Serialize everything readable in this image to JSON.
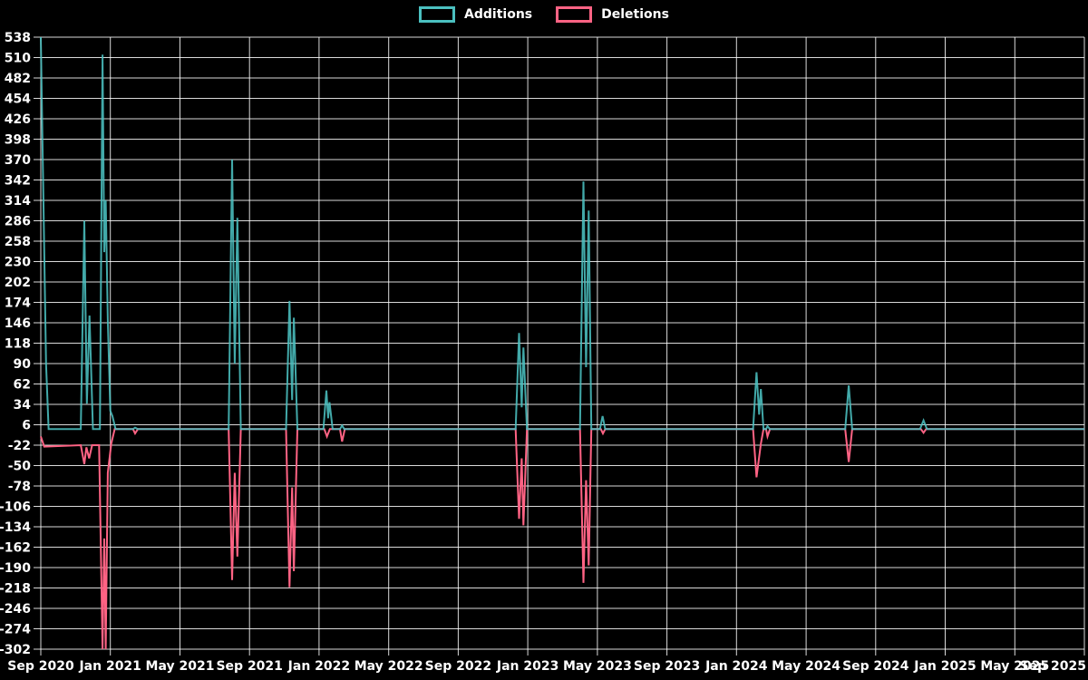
{
  "legend": {
    "items": [
      {
        "label": "Additions",
        "color": "#4bc0c0"
      },
      {
        "label": "Deletions",
        "color": "#ff6384"
      }
    ]
  },
  "chart_data": {
    "type": "line",
    "title": "",
    "legend_position": "top",
    "grid": true,
    "colors": {
      "background": "#000000",
      "grid": "rgba(255,255,255,0.85)",
      "text": "#ffffff",
      "additions": "#4bc0c0",
      "deletions": "#ff6384"
    },
    "x_axis": {
      "tick_labels": [
        "Sep 2020",
        "Jan 2021",
        "May 2021",
        "Sep 2021",
        "Jan 2022",
        "May 2022",
        "Sep 2022",
        "Jan 2023",
        "May 2023",
        "Sep 2023",
        "Jan 2024",
        "May 2024",
        "Sep 2024",
        "Jan 2025",
        "May 2025",
        "Sep 2025"
      ],
      "months_per_tick": 4,
      "range_months": [
        0,
        60
      ]
    },
    "y_axis": {
      "ticks": [
        538,
        510,
        482,
        454,
        426,
        398,
        370,
        342,
        314,
        286,
        258,
        230,
        202,
        174,
        146,
        118,
        90,
        62,
        34,
        6,
        -22,
        -50,
        -78,
        -106,
        -134,
        -162,
        -190,
        -218,
        -246,
        -274,
        -302
      ],
      "min": -302,
      "max": 538,
      "step": 28
    },
    "series": [
      {
        "name": "Additions",
        "color": "#4bc0c0",
        "points": [
          [
            0,
            538
          ],
          [
            0.3,
            90
          ],
          [
            0.45,
            0
          ],
          [
            2.3,
            0
          ],
          [
            2.5,
            286
          ],
          [
            2.65,
            35
          ],
          [
            2.8,
            156
          ],
          [
            3.0,
            0
          ],
          [
            3.4,
            0
          ],
          [
            3.55,
            514
          ],
          [
            3.65,
            243
          ],
          [
            3.73,
            314
          ],
          [
            3.85,
            150
          ],
          [
            4.0,
            25
          ],
          [
            4.12,
            18
          ],
          [
            4.3,
            0
          ],
          [
            5.3,
            0
          ],
          [
            5.42,
            2
          ],
          [
            5.58,
            0
          ],
          [
            10.8,
            0
          ],
          [
            11.0,
            370
          ],
          [
            11.15,
            90
          ],
          [
            11.3,
            290
          ],
          [
            11.5,
            0
          ],
          [
            14.1,
            0
          ],
          [
            14.3,
            176
          ],
          [
            14.45,
            40
          ],
          [
            14.55,
            153
          ],
          [
            14.75,
            0
          ],
          [
            16.25,
            0
          ],
          [
            16.42,
            53
          ],
          [
            16.52,
            15
          ],
          [
            16.6,
            37
          ],
          [
            16.78,
            0
          ],
          [
            17.2,
            0
          ],
          [
            17.32,
            5
          ],
          [
            17.45,
            0
          ],
          [
            27.3,
            0
          ],
          [
            27.5,
            132
          ],
          [
            27.65,
            30
          ],
          [
            27.75,
            112
          ],
          [
            27.95,
            0
          ],
          [
            31.0,
            0
          ],
          [
            31.2,
            340
          ],
          [
            31.35,
            85
          ],
          [
            31.5,
            300
          ],
          [
            31.65,
            0
          ],
          [
            32.15,
            0
          ],
          [
            32.3,
            18
          ],
          [
            32.45,
            0
          ],
          [
            40.95,
            0
          ],
          [
            41.15,
            78
          ],
          [
            41.3,
            20
          ],
          [
            41.4,
            55
          ],
          [
            41.55,
            0
          ],
          [
            41.7,
            0
          ],
          [
            41.78,
            4
          ],
          [
            41.92,
            0
          ],
          [
            46.25,
            0
          ],
          [
            46.45,
            60
          ],
          [
            46.65,
            0
          ],
          [
            50.55,
            0
          ],
          [
            50.75,
            12
          ],
          [
            50.95,
            0
          ],
          [
            60,
            0
          ]
        ]
      },
      {
        "name": "Deletions",
        "color": "#ff6384",
        "points": [
          [
            0,
            -10
          ],
          [
            0.2,
            -24
          ],
          [
            2.3,
            -22
          ],
          [
            2.5,
            -48
          ],
          [
            2.62,
            -25
          ],
          [
            2.78,
            -40
          ],
          [
            2.95,
            -22
          ],
          [
            3.35,
            -22
          ],
          [
            3.55,
            -302
          ],
          [
            3.65,
            -150
          ],
          [
            3.73,
            -302
          ],
          [
            3.85,
            -60
          ],
          [
            4.05,
            -20
          ],
          [
            4.25,
            0
          ],
          [
            5.3,
            0
          ],
          [
            5.42,
            -6
          ],
          [
            5.58,
            0
          ],
          [
            10.8,
            0
          ],
          [
            11.0,
            -207
          ],
          [
            11.15,
            -60
          ],
          [
            11.3,
            -175
          ],
          [
            11.5,
            0
          ],
          [
            14.1,
            0
          ],
          [
            14.3,
            -217
          ],
          [
            14.45,
            -80
          ],
          [
            14.55,
            -195
          ],
          [
            14.75,
            0
          ],
          [
            16.3,
            0
          ],
          [
            16.45,
            -10
          ],
          [
            16.62,
            0
          ],
          [
            17.2,
            0
          ],
          [
            17.32,
            -17
          ],
          [
            17.48,
            0
          ],
          [
            27.3,
            0
          ],
          [
            27.5,
            -123
          ],
          [
            27.65,
            -40
          ],
          [
            27.75,
            -132
          ],
          [
            27.95,
            0
          ],
          [
            31.0,
            0
          ],
          [
            31.2,
            -211
          ],
          [
            31.35,
            -70
          ],
          [
            31.5,
            -187
          ],
          [
            31.65,
            0
          ],
          [
            32.2,
            0
          ],
          [
            32.32,
            -6
          ],
          [
            32.45,
            0
          ],
          [
            40.95,
            0
          ],
          [
            41.15,
            -66
          ],
          [
            41.4,
            -20
          ],
          [
            41.55,
            0
          ],
          [
            41.7,
            0
          ],
          [
            41.78,
            -10
          ],
          [
            41.92,
            0
          ],
          [
            46.25,
            0
          ],
          [
            46.45,
            -45
          ],
          [
            46.65,
            0
          ],
          [
            50.6,
            0
          ],
          [
            50.75,
            -5
          ],
          [
            50.9,
            0
          ],
          [
            60,
            0
          ]
        ]
      }
    ]
  }
}
